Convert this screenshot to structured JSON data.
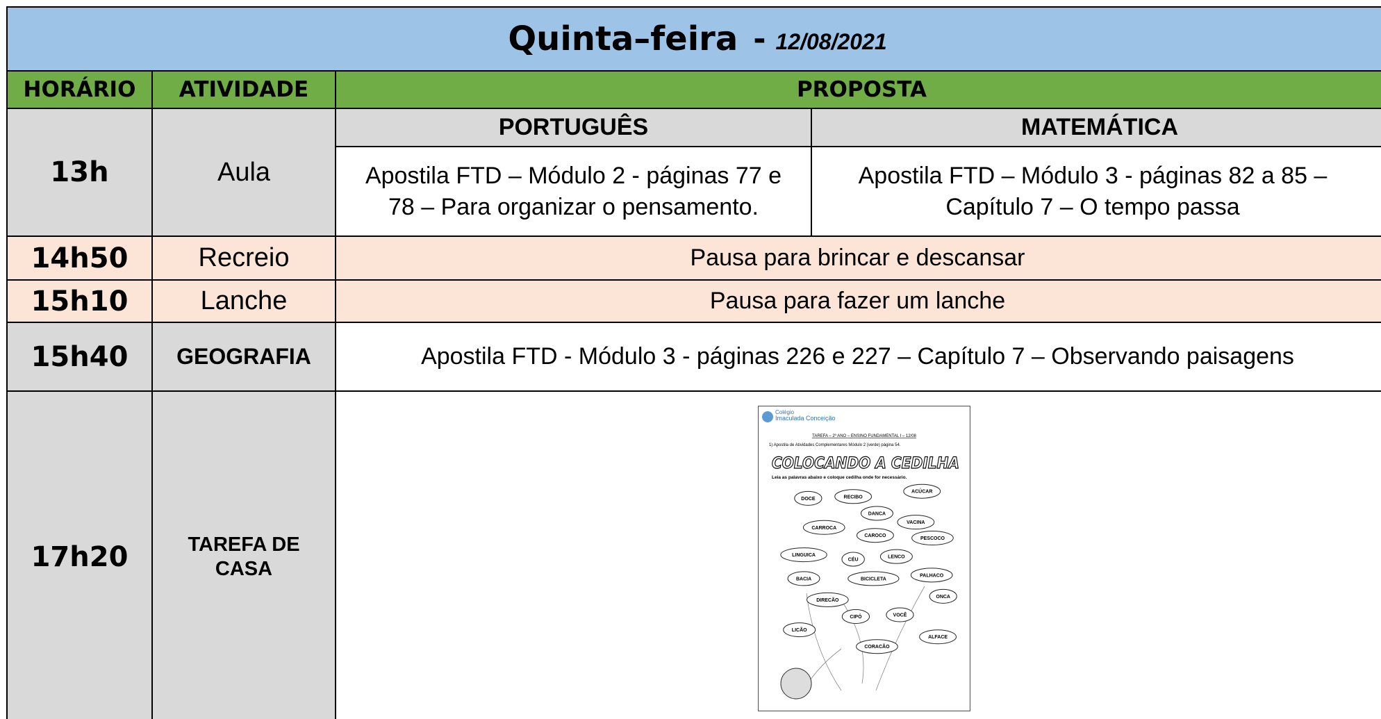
{
  "header": {
    "day": "Quinta–feira",
    "separator": "-",
    "date": "12/08/2021"
  },
  "table": {
    "columns": [
      "HORÁRIO",
      "ATIVIDADE",
      "PROPOSTA"
    ],
    "subjects": [
      "PORTUGUÊS",
      "MATEMÁTICA"
    ],
    "rows": [
      {
        "time": "13h",
        "activity": "Aula",
        "proposals": [
          "Apostila FTD – Módulo 2 - páginas 77 e 78 – Para organizar o pensamento.",
          "Apostila FTD – Módulo 3 - páginas 82 a 85 – Capítulo 7 – O tempo passa"
        ]
      },
      {
        "time": "14h50",
        "activity": "Recreio",
        "proposal": "Pausa para brincar e descansar"
      },
      {
        "time": "15h10",
        "activity": "Lanche",
        "proposal": "Pausa para fazer um lanche"
      },
      {
        "time": "15h40",
        "activity": "GEOGRAFIA",
        "proposal": "Apostila FTD - Módulo 3 -  páginas 226 e 227 – Capítulo 7 – Observando paisagens"
      },
      {
        "time": "17h20",
        "activity": "TAREFA DE CASA"
      }
    ]
  },
  "worksheet": {
    "school": [
      "Colégio",
      "Imaculada Conceição"
    ],
    "task": "TAREFA – 2º ANO – ENSINO FUNDAMENTAL I – 12/08",
    "item": "1) Apostila de Atividades Complementares Módulo 2 (verde) página 54.",
    "title": "COLOCANDO A CEDILHA",
    "instruction": "Leia as palavras abaixo e coloque cedilha onde for necessário.",
    "words": [
      "DOCE",
      "RECIBO",
      "ACÚCAR",
      "DANCA",
      "CARROCA",
      "VACINA",
      "CAROCO",
      "PESCOCO",
      "LINGUICA",
      "CÉU",
      "LENCO",
      "BACIA",
      "BICICLETA",
      "PALHACO",
      "DIRECÃO",
      "ONCA",
      "CIPÓ",
      "VOCÊ",
      "LICÃO",
      "CORACÃO",
      "ALFACE"
    ]
  }
}
